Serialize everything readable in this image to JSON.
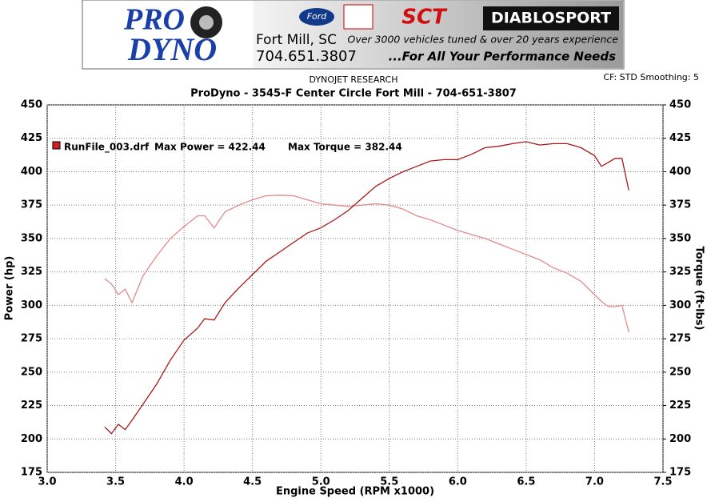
{
  "banner": {
    "logo_line1": "PRO",
    "logo_line2": "DYNO",
    "city": "Fort Mill, SC",
    "phone": "704.651.3807",
    "ford": "Ford",
    "sct": "SCT",
    "diablo": "DIABLOSPORT",
    "tagline1": "Over 3000 vehicles tuned & over 20 years experience",
    "tagline2": "...For All Your Performance Needs"
  },
  "chart_data": {
    "type": "line",
    "source": "DYNOJET RESEARCH",
    "settings_text": "CF: STD  Smoothing: 5",
    "title": "ProDyno - 3545-F Center Circle Fort Mill  - 704-651-3807",
    "x_label": "Engine Speed (RPM x1000)",
    "y_label": "Power (hp)",
    "y2_label": "Torque (ft-lbs)",
    "legend": {
      "file": "RunFile_003.drf",
      "max_power": "Max Power = 422.44",
      "max_torque": "Max Torque = 382.44",
      "color": "#d42020"
    },
    "grid": true,
    "xlim": [
      3.0,
      7.5
    ],
    "xticks": [
      {
        "value": 3.0,
        "label": "3.0"
      },
      3.5,
      {
        "value": 4.0,
        "label": "4.0"
      },
      4.5,
      {
        "value": 5.0,
        "label": "5.0"
      },
      5.5,
      {
        "value": 6.0,
        "label": "6.0"
      },
      6.5,
      {
        "value": 7.0,
        "label": "7.0"
      },
      7.5
    ],
    "ylim": [
      175,
      450
    ],
    "yticks": [
      175,
      200,
      225,
      250,
      275,
      300,
      325,
      350,
      375,
      400,
      425,
      450
    ],
    "y2lim": [
      175,
      450
    ],
    "y2ticks": [
      175,
      200,
      225,
      250,
      275,
      300,
      325,
      350,
      375,
      400,
      425,
      450
    ],
    "x": [
      3.42,
      3.47,
      3.52,
      3.57,
      3.62,
      3.7,
      3.8,
      3.9,
      4.0,
      4.1,
      4.15,
      4.22,
      4.3,
      4.4,
      4.5,
      4.6,
      4.7,
      4.8,
      4.9,
      5.0,
      5.1,
      5.2,
      5.3,
      5.4,
      5.5,
      5.6,
      5.7,
      5.8,
      5.9,
      6.0,
      6.1,
      6.2,
      6.3,
      6.4,
      6.5,
      6.6,
      6.7,
      6.8,
      6.9,
      7.0,
      7.05,
      7.1,
      7.15,
      7.2,
      7.25
    ],
    "series": [
      {
        "color": "#a81818",
        "values": [
          209,
          204,
          211,
          207,
          214,
          226,
          241,
          259,
          274,
          283,
          290,
          289,
          302,
          313,
          323,
          333,
          340,
          347,
          354,
          358,
          364,
          371,
          380,
          389,
          395,
          400,
          404,
          408,
          409,
          409,
          413,
          418,
          419,
          421,
          422.44,
          420,
          421,
          421,
          418,
          412,
          404,
          407,
          410,
          410,
          386
        ]
      },
      {
        "color": "#e38a8a",
        "axis": "y2",
        "values": [
          320,
          316,
          308,
          312,
          302,
          322,
          337,
          350,
          359,
          367,
          367,
          358,
          370,
          375,
          379,
          382,
          382.44,
          382,
          379,
          376,
          375,
          374,
          375,
          376,
          375,
          372,
          367,
          364,
          360,
          356,
          353,
          350,
          346,
          342,
          338,
          334,
          328,
          324,
          318,
          308,
          303,
          299,
          299,
          300,
          280
        ]
      }
    ]
  }
}
